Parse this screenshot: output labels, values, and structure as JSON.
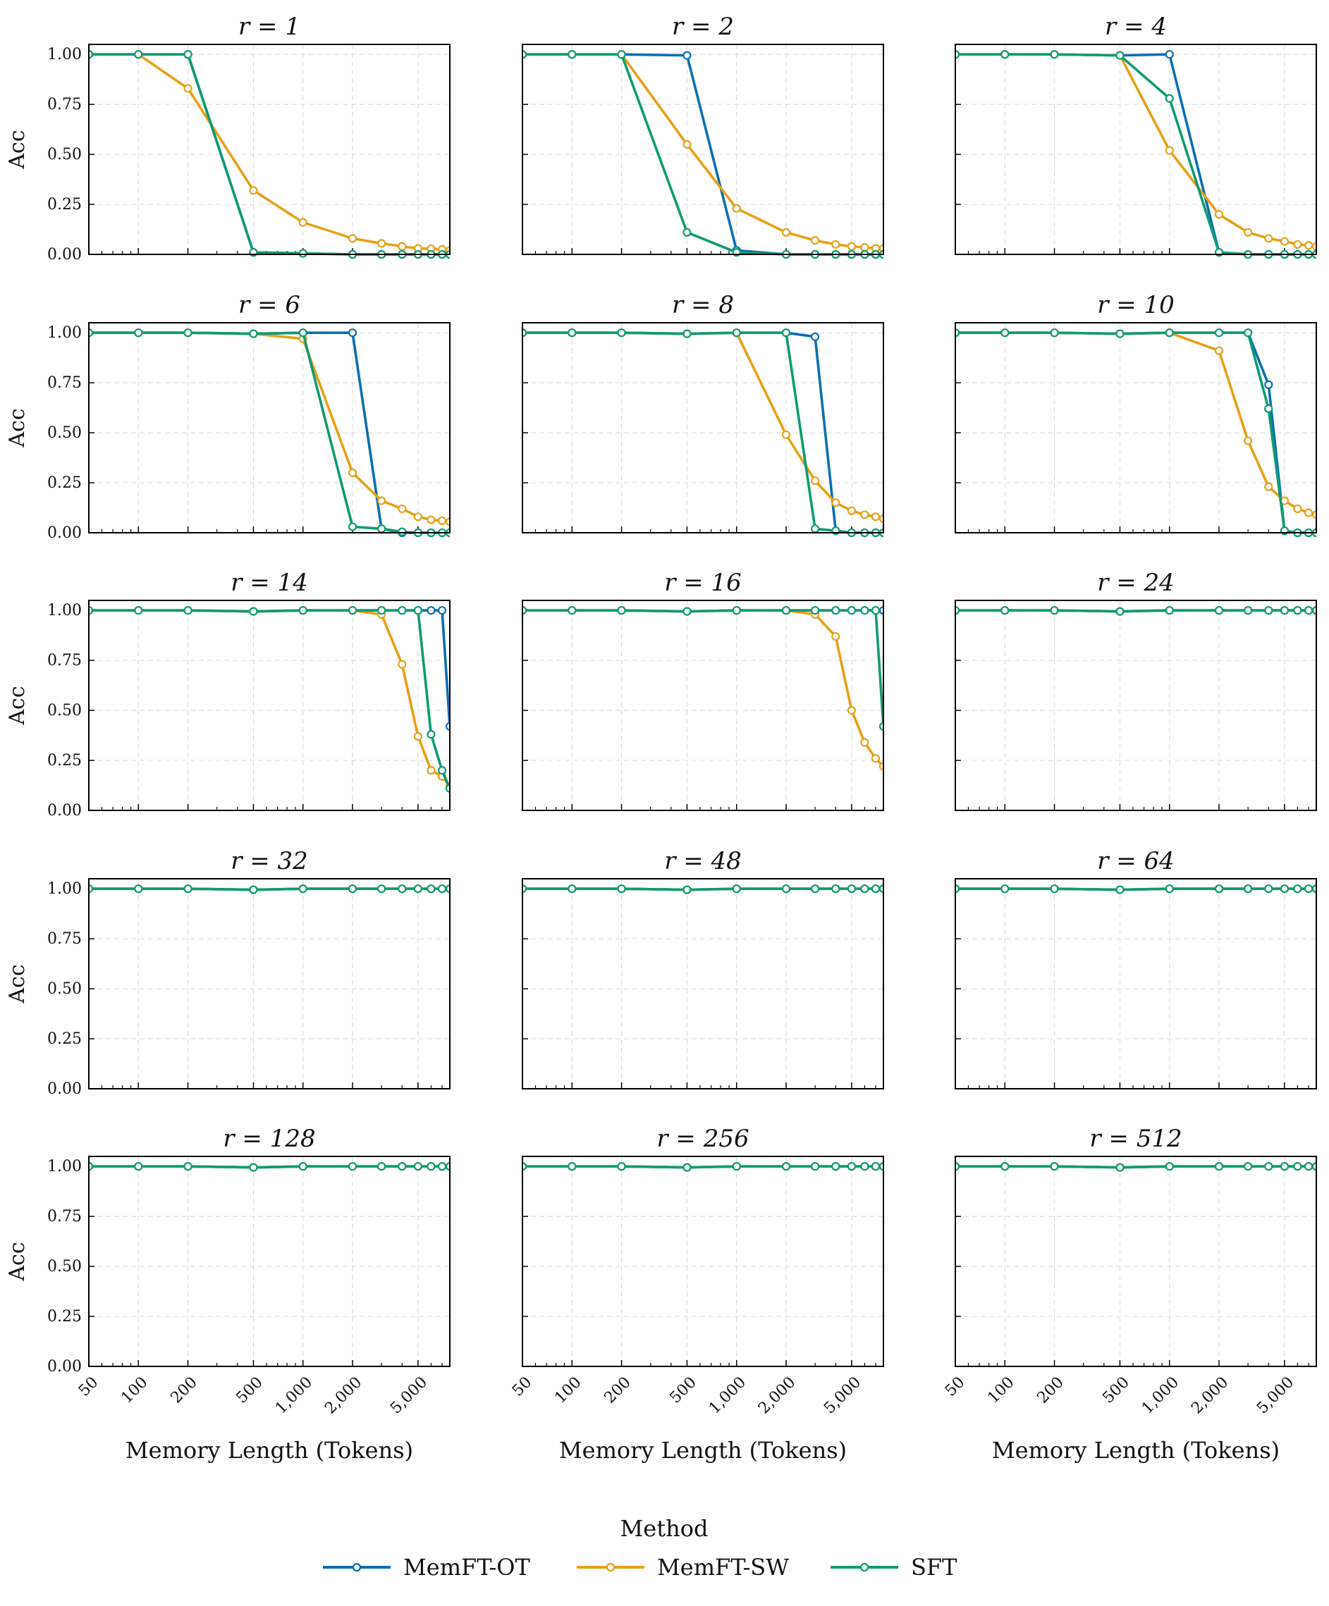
{
  "colors": {
    "MemFT-OT": "#0b6fb0",
    "MemFT-SW": "#e6a117",
    "SFT": "#0f9b74",
    "grid": "#d8d8d8",
    "axis": "#000000"
  },
  "chart_data": {
    "type": "line",
    "grid": true,
    "x_scale": "log",
    "xlim": [
      50,
      7800
    ],
    "ylim": [
      0,
      1.05
    ],
    "xlabel": "Memory Length (Tokens)",
    "ylabel": "Acc",
    "x_tick_values": [
      50,
      100,
      200,
      500,
      1000,
      2000,
      5000
    ],
    "x_tick_labels": [
      "50",
      "100",
      "200",
      "500",
      "1,000",
      "2,000",
      "5,000"
    ],
    "y_tick_values": [
      0,
      0.25,
      0.5,
      0.75,
      1.0
    ],
    "y_tick_labels": [
      "0.00",
      "0.25",
      "0.50",
      "0.75",
      "1.00"
    ],
    "x": [
      50,
      100,
      200,
      500,
      1000,
      2000,
      3000,
      4000,
      5000,
      6000,
      7000,
      7800
    ],
    "legend": {
      "title": "Method",
      "placement": "bottom-center",
      "entries": [
        "MemFT-OT",
        "MemFT-SW",
        "SFT"
      ]
    },
    "panels": [
      {
        "title": "r = 1",
        "series": [
          {
            "name": "MemFT-OT",
            "values": [
              1.0,
              1.0,
              1.0,
              0.01,
              0.005,
              0.0,
              0.0,
              0.0,
              0.0,
              0.0,
              0.0,
              0.0
            ]
          },
          {
            "name": "MemFT-SW",
            "values": [
              1.0,
              1.0,
              0.83,
              0.32,
              0.16,
              0.08,
              0.055,
              0.04,
              0.03,
              0.028,
              0.025,
              0.02
            ]
          },
          {
            "name": "SFT",
            "values": [
              1.0,
              1.0,
              1.0,
              0.01,
              0.005,
              0.0,
              0.0,
              0.0,
              0.0,
              0.0,
              0.0,
              0.0
            ]
          }
        ]
      },
      {
        "title": "r = 2",
        "series": [
          {
            "name": "MemFT-OT",
            "values": [
              1.0,
              1.0,
              1.0,
              0.995,
              0.02,
              0.0,
              0.0,
              0.0,
              0.0,
              0.0,
              0.0,
              0.0
            ]
          },
          {
            "name": "MemFT-SW",
            "values": [
              1.0,
              1.0,
              1.0,
              0.55,
              0.23,
              0.11,
              0.07,
              0.05,
              0.04,
              0.035,
              0.03,
              0.03
            ]
          },
          {
            "name": "SFT",
            "values": [
              1.0,
              1.0,
              1.0,
              0.11,
              0.01,
              0.0,
              0.0,
              0.0,
              0.0,
              0.0,
              0.0,
              0.0
            ]
          }
        ]
      },
      {
        "title": "r = 4",
        "series": [
          {
            "name": "MemFT-OT",
            "values": [
              1.0,
              1.0,
              1.0,
              0.995,
              1.0,
              0.01,
              0.0,
              0.0,
              0.0,
              0.0,
              0.0,
              0.0
            ]
          },
          {
            "name": "MemFT-SW",
            "values": [
              1.0,
              1.0,
              1.0,
              0.995,
              0.52,
              0.2,
              0.11,
              0.08,
              0.065,
              0.05,
              0.045,
              0.04
            ]
          },
          {
            "name": "SFT",
            "values": [
              1.0,
              1.0,
              1.0,
              0.995,
              0.78,
              0.01,
              0.0,
              0.0,
              0.0,
              0.0,
              0.0,
              0.0
            ]
          }
        ]
      },
      {
        "title": "r = 6",
        "series": [
          {
            "name": "MemFT-OT",
            "values": [
              1.0,
              1.0,
              1.0,
              0.995,
              1.0,
              1.0,
              0.02,
              0.0,
              0.0,
              0.0,
              0.0,
              0.0
            ]
          },
          {
            "name": "MemFT-SW",
            "values": [
              1.0,
              1.0,
              1.0,
              0.995,
              0.97,
              0.3,
              0.16,
              0.12,
              0.08,
              0.065,
              0.06,
              0.055
            ]
          },
          {
            "name": "SFT",
            "values": [
              1.0,
              1.0,
              1.0,
              0.995,
              1.0,
              0.03,
              0.02,
              0.005,
              0.0,
              0.0,
              0.0,
              0.0
            ]
          }
        ]
      },
      {
        "title": "r = 8",
        "series": [
          {
            "name": "MemFT-OT",
            "values": [
              1.0,
              1.0,
              1.0,
              0.995,
              1.0,
              1.0,
              0.98,
              0.01,
              0.0,
              0.0,
              0.0,
              0.0
            ]
          },
          {
            "name": "MemFT-SW",
            "values": [
              1.0,
              1.0,
              1.0,
              0.995,
              1.0,
              0.49,
              0.26,
              0.15,
              0.11,
              0.09,
              0.08,
              0.07
            ]
          },
          {
            "name": "SFT",
            "values": [
              1.0,
              1.0,
              1.0,
              0.995,
              1.0,
              1.0,
              0.02,
              0.01,
              0.0,
              0.0,
              0.0,
              0.0
            ]
          }
        ]
      },
      {
        "title": "r = 10",
        "series": [
          {
            "name": "MemFT-OT",
            "values": [
              1.0,
              1.0,
              1.0,
              0.995,
              1.0,
              1.0,
              1.0,
              0.74,
              0.01,
              0.0,
              0.0,
              0.0
            ]
          },
          {
            "name": "MemFT-SW",
            "values": [
              1.0,
              1.0,
              1.0,
              0.995,
              1.0,
              0.91,
              0.46,
              0.23,
              0.16,
              0.12,
              0.1,
              0.09
            ]
          },
          {
            "name": "SFT",
            "values": [
              1.0,
              1.0,
              1.0,
              0.995,
              1.0,
              1.0,
              1.0,
              0.62,
              0.01,
              0.0,
              0.0,
              0.0
            ]
          }
        ]
      },
      {
        "title": "r = 14",
        "series": [
          {
            "name": "MemFT-OT",
            "values": [
              1.0,
              1.0,
              1.0,
              0.995,
              1.0,
              1.0,
              1.0,
              1.0,
              1.0,
              1.0,
              1.0,
              0.42
            ]
          },
          {
            "name": "MemFT-SW",
            "values": [
              1.0,
              1.0,
              1.0,
              0.995,
              1.0,
              1.0,
              0.98,
              0.73,
              0.37,
              0.2,
              0.17,
              0.12
            ]
          },
          {
            "name": "SFT",
            "values": [
              1.0,
              1.0,
              1.0,
              0.995,
              1.0,
              1.0,
              1.0,
              1.0,
              1.0,
              0.38,
              0.2,
              0.11
            ]
          }
        ]
      },
      {
        "title": "r = 16",
        "series": [
          {
            "name": "MemFT-OT",
            "values": [
              1.0,
              1.0,
              1.0,
              0.995,
              1.0,
              1.0,
              1.0,
              1.0,
              1.0,
              1.0,
              1.0,
              1.0
            ]
          },
          {
            "name": "MemFT-SW",
            "values": [
              1.0,
              1.0,
              1.0,
              0.995,
              1.0,
              1.0,
              0.98,
              0.87,
              0.5,
              0.34,
              0.26,
              0.22
            ]
          },
          {
            "name": "SFT",
            "values": [
              1.0,
              1.0,
              1.0,
              0.995,
              1.0,
              1.0,
              1.0,
              1.0,
              1.0,
              1.0,
              1.0,
              0.42
            ]
          }
        ]
      },
      {
        "title": "r = 24",
        "series": [
          {
            "name": "MemFT-OT",
            "values": [
              1.0,
              1.0,
              1.0,
              0.995,
              1.0,
              1.0,
              1.0,
              1.0,
              1.0,
              1.0,
              1.0,
              1.0
            ]
          },
          {
            "name": "MemFT-SW",
            "values": [
              1.0,
              1.0,
              1.0,
              0.995,
              1.0,
              1.0,
              1.0,
              1.0,
              1.0,
              1.0,
              1.0,
              1.0
            ]
          },
          {
            "name": "SFT",
            "values": [
              1.0,
              1.0,
              1.0,
              0.995,
              1.0,
              1.0,
              1.0,
              1.0,
              1.0,
              1.0,
              1.0,
              1.0
            ]
          }
        ]
      },
      {
        "title": "r = 32",
        "series": [
          {
            "name": "MemFT-OT",
            "values": [
              1.0,
              1.0,
              1.0,
              0.995,
              1.0,
              1.0,
              1.0,
              1.0,
              1.0,
              1.0,
              1.0,
              1.0
            ]
          },
          {
            "name": "MemFT-SW",
            "values": [
              1.0,
              1.0,
              1.0,
              0.995,
              1.0,
              1.0,
              1.0,
              1.0,
              1.0,
              1.0,
              1.0,
              1.0
            ]
          },
          {
            "name": "SFT",
            "values": [
              1.0,
              1.0,
              1.0,
              0.995,
              1.0,
              1.0,
              1.0,
              1.0,
              1.0,
              1.0,
              1.0,
              1.0
            ]
          }
        ]
      },
      {
        "title": "r = 48",
        "series": [
          {
            "name": "MemFT-OT",
            "values": [
              1.0,
              1.0,
              1.0,
              0.995,
              1.0,
              1.0,
              1.0,
              1.0,
              1.0,
              1.0,
              1.0,
              1.0
            ]
          },
          {
            "name": "MemFT-SW",
            "values": [
              1.0,
              1.0,
              1.0,
              0.995,
              1.0,
              1.0,
              1.0,
              1.0,
              1.0,
              1.0,
              1.0,
              1.0
            ]
          },
          {
            "name": "SFT",
            "values": [
              1.0,
              1.0,
              1.0,
              0.995,
              1.0,
              1.0,
              1.0,
              1.0,
              1.0,
              1.0,
              1.0,
              1.0
            ]
          }
        ]
      },
      {
        "title": "r = 64",
        "series": [
          {
            "name": "MemFT-OT",
            "values": [
              1.0,
              1.0,
              1.0,
              0.995,
              1.0,
              1.0,
              1.0,
              1.0,
              1.0,
              1.0,
              1.0,
              1.0
            ]
          },
          {
            "name": "MemFT-SW",
            "values": [
              1.0,
              1.0,
              1.0,
              0.995,
              1.0,
              1.0,
              1.0,
              1.0,
              1.0,
              1.0,
              1.0,
              1.0
            ]
          },
          {
            "name": "SFT",
            "values": [
              1.0,
              1.0,
              1.0,
              0.995,
              1.0,
              1.0,
              1.0,
              1.0,
              1.0,
              1.0,
              1.0,
              1.0
            ]
          }
        ]
      },
      {
        "title": "r = 128",
        "series": [
          {
            "name": "MemFT-OT",
            "values": [
              1.0,
              1.0,
              1.0,
              0.995,
              1.0,
              1.0,
              1.0,
              1.0,
              1.0,
              1.0,
              1.0,
              1.0
            ]
          },
          {
            "name": "MemFT-SW",
            "values": [
              1.0,
              1.0,
              1.0,
              0.995,
              1.0,
              1.0,
              1.0,
              1.0,
              1.0,
              1.0,
              1.0,
              1.0
            ]
          },
          {
            "name": "SFT",
            "values": [
              1.0,
              1.0,
              1.0,
              0.995,
              1.0,
              1.0,
              1.0,
              1.0,
              1.0,
              1.0,
              1.0,
              1.0
            ]
          }
        ]
      },
      {
        "title": "r = 256",
        "series": [
          {
            "name": "MemFT-OT",
            "values": [
              1.0,
              1.0,
              1.0,
              0.995,
              1.0,
              1.0,
              1.0,
              1.0,
              1.0,
              1.0,
              1.0,
              1.0
            ]
          },
          {
            "name": "MemFT-SW",
            "values": [
              1.0,
              1.0,
              1.0,
              0.995,
              1.0,
              1.0,
              1.0,
              1.0,
              1.0,
              1.0,
              1.0,
              1.0
            ]
          },
          {
            "name": "SFT",
            "values": [
              1.0,
              1.0,
              1.0,
              0.995,
              1.0,
              1.0,
              1.0,
              1.0,
              1.0,
              1.0,
              1.0,
              1.0
            ]
          }
        ]
      },
      {
        "title": "r = 512",
        "series": [
          {
            "name": "MemFT-OT",
            "values": [
              1.0,
              1.0,
              1.0,
              0.995,
              1.0,
              1.0,
              1.0,
              1.0,
              1.0,
              1.0,
              1.0,
              1.0
            ]
          },
          {
            "name": "MemFT-SW",
            "values": [
              1.0,
              1.0,
              1.0,
              0.995,
              1.0,
              1.0,
              1.0,
              1.0,
              1.0,
              1.0,
              1.0,
              1.0
            ]
          },
          {
            "name": "SFT",
            "values": [
              1.0,
              1.0,
              1.0,
              0.995,
              1.0,
              1.0,
              1.0,
              1.0,
              1.0,
              1.0,
              1.0,
              1.0
            ]
          }
        ]
      }
    ]
  }
}
